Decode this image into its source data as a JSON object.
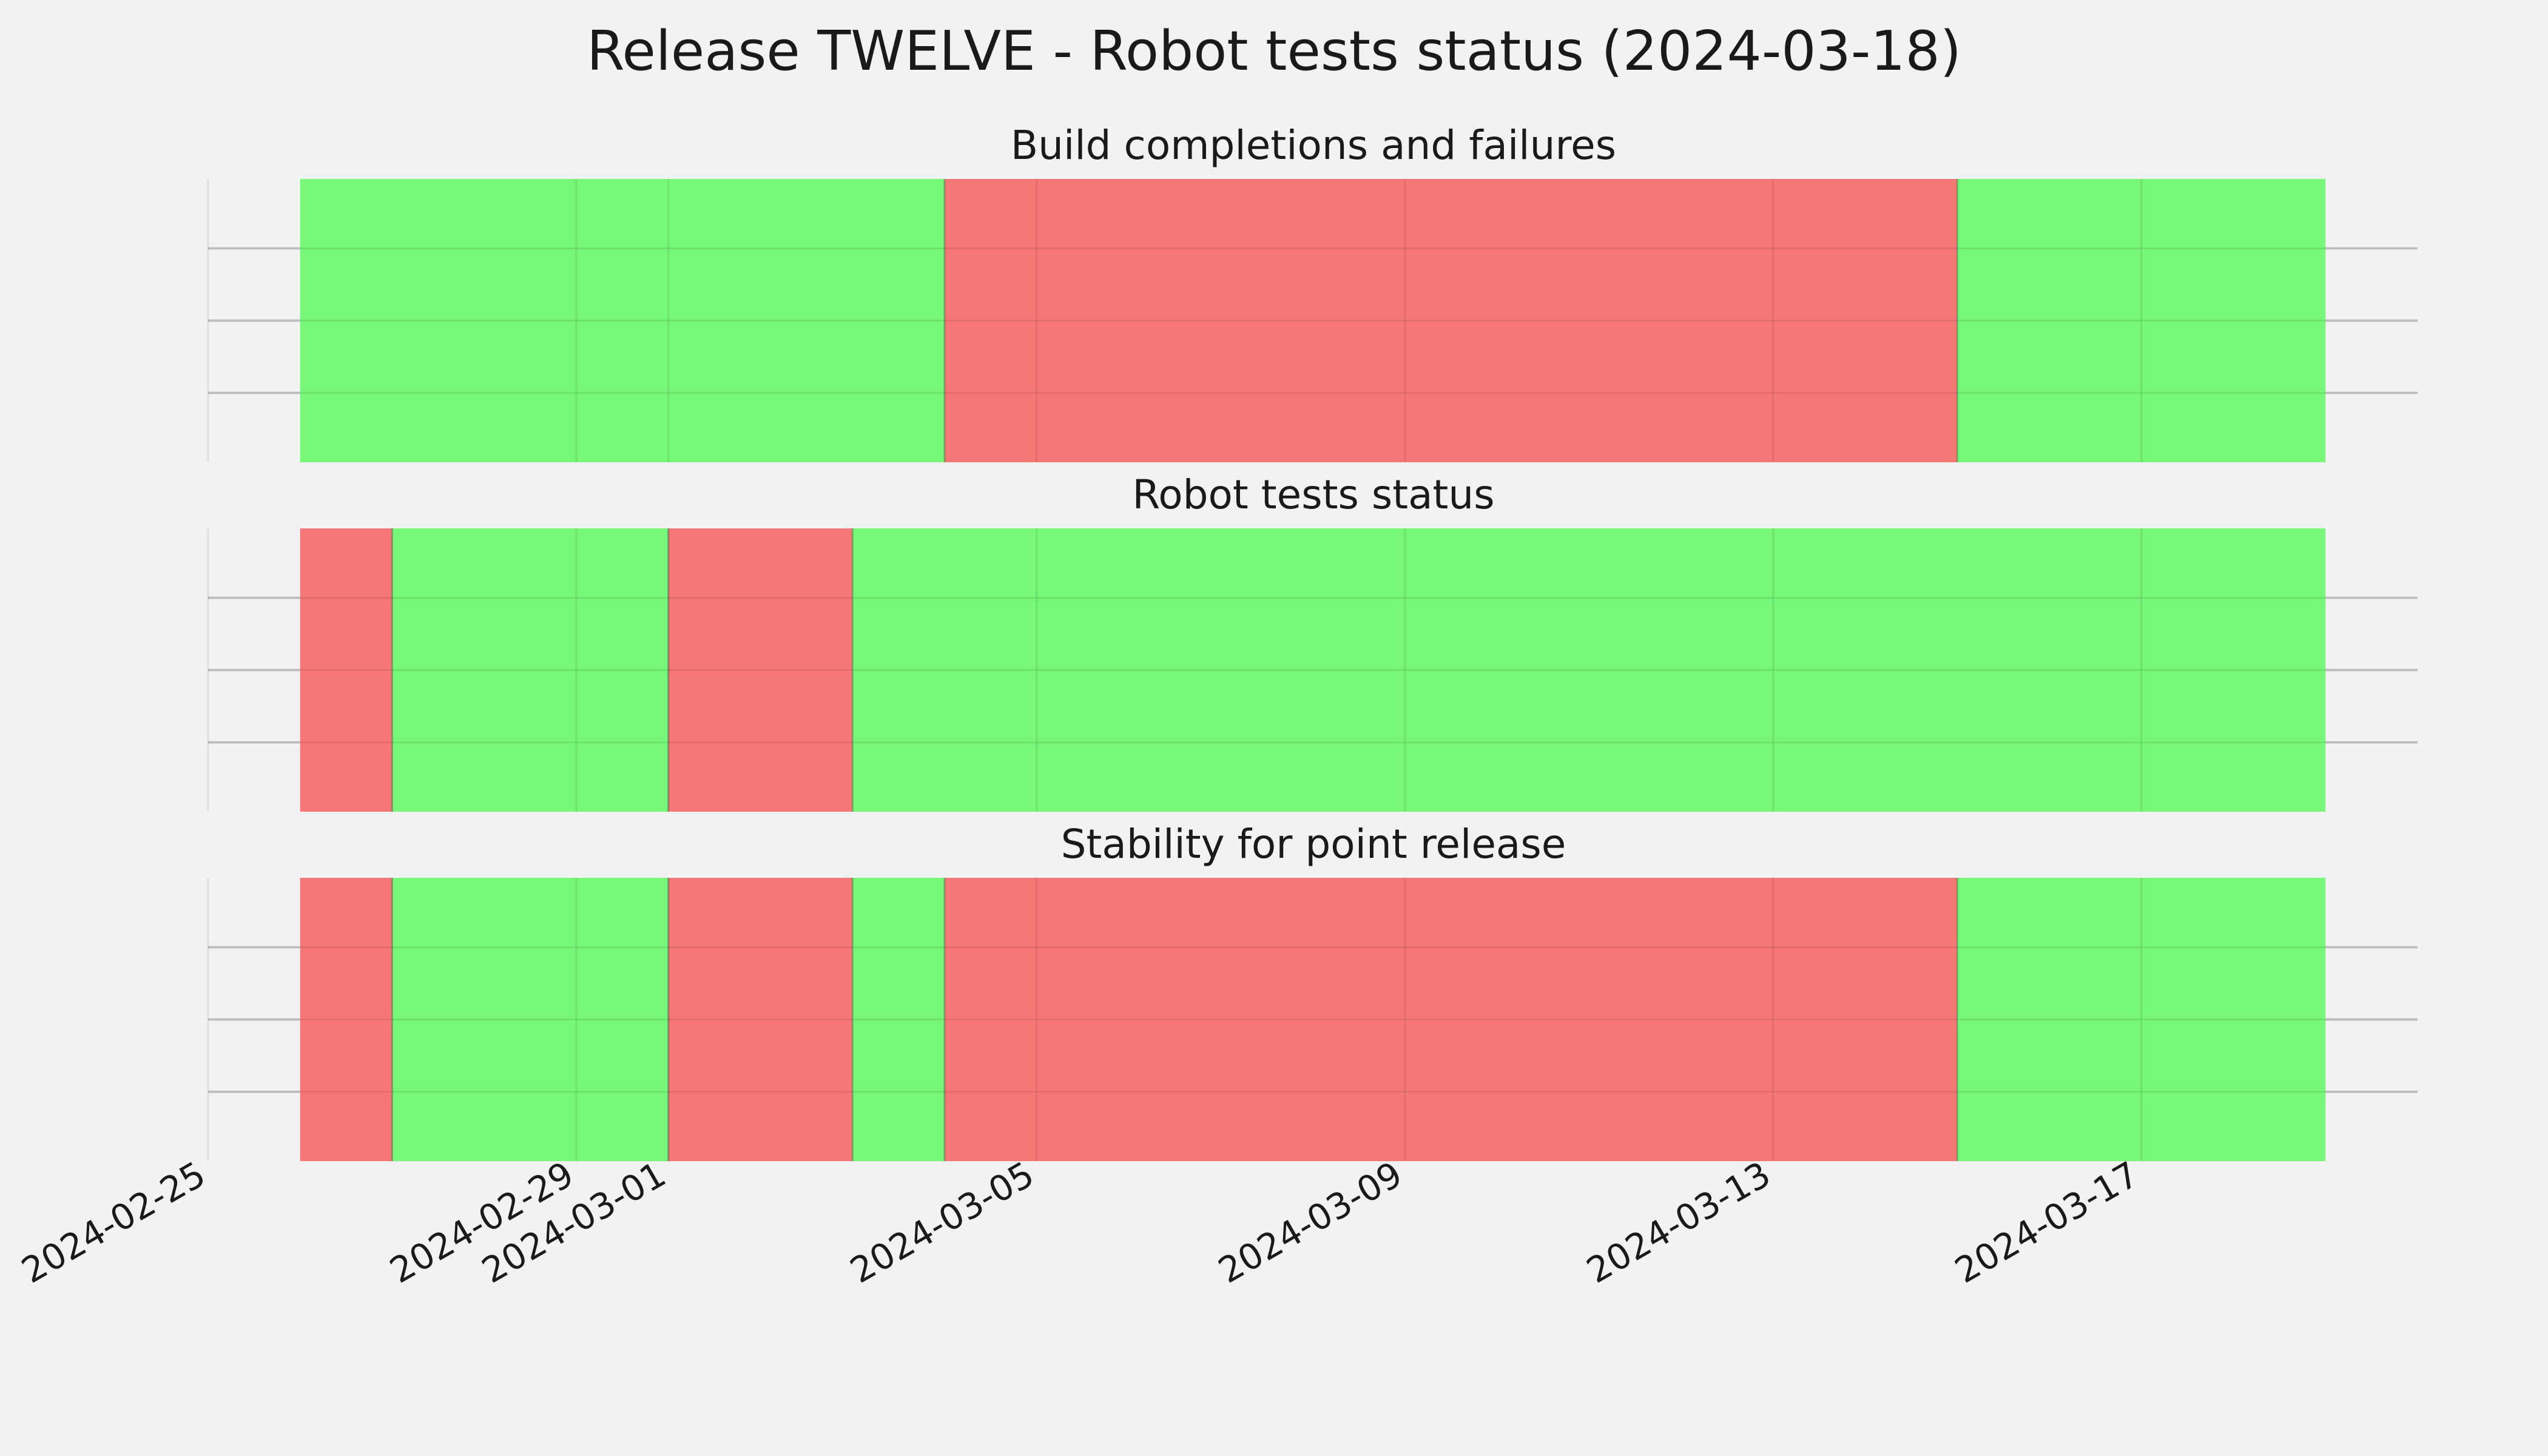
{
  "chart_data": {
    "type": "timeline",
    "title": "Release TWELVE - Robot tests status (2024-03-18)",
    "x_axis": {
      "type": "date",
      "range": [
        "2024-02-25",
        "2024-03-20"
      ],
      "ticks": [
        "2024-02-25",
        "2024-02-29",
        "2024-03-01",
        "2024-03-05",
        "2024-03-09",
        "2024-03-13",
        "2024-03-17"
      ]
    },
    "grid": true,
    "colors": {
      "pass": "#77f777",
      "fail": "#f77777"
    },
    "panels": [
      {
        "name": "build",
        "title": "Build completions and failures",
        "segments": [
          {
            "start": "2024-02-26",
            "end": "2024-03-04",
            "status": "pass"
          },
          {
            "start": "2024-03-04",
            "end": "2024-03-15",
            "status": "fail"
          },
          {
            "start": "2024-03-15",
            "end": "2024-03-19",
            "status": "pass"
          }
        ]
      },
      {
        "name": "robot",
        "title": "Robot tests status",
        "segments": [
          {
            "start": "2024-02-26",
            "end": "2024-02-27",
            "status": "fail"
          },
          {
            "start": "2024-02-27",
            "end": "2024-03-01",
            "status": "pass"
          },
          {
            "start": "2024-03-01",
            "end": "2024-03-03",
            "status": "fail"
          },
          {
            "start": "2024-03-03",
            "end": "2024-03-19",
            "status": "pass"
          }
        ]
      },
      {
        "name": "stability",
        "title": "Stability for point release",
        "segments": [
          {
            "start": "2024-02-26",
            "end": "2024-02-27",
            "status": "fail"
          },
          {
            "start": "2024-02-27",
            "end": "2024-03-01",
            "status": "pass"
          },
          {
            "start": "2024-03-01",
            "end": "2024-03-03",
            "status": "fail"
          },
          {
            "start": "2024-03-03",
            "end": "2024-03-04",
            "status": "pass"
          },
          {
            "start": "2024-03-04",
            "end": "2024-03-15",
            "status": "fail"
          },
          {
            "start": "2024-03-15",
            "end": "2024-03-19",
            "status": "pass"
          }
        ]
      }
    ]
  }
}
